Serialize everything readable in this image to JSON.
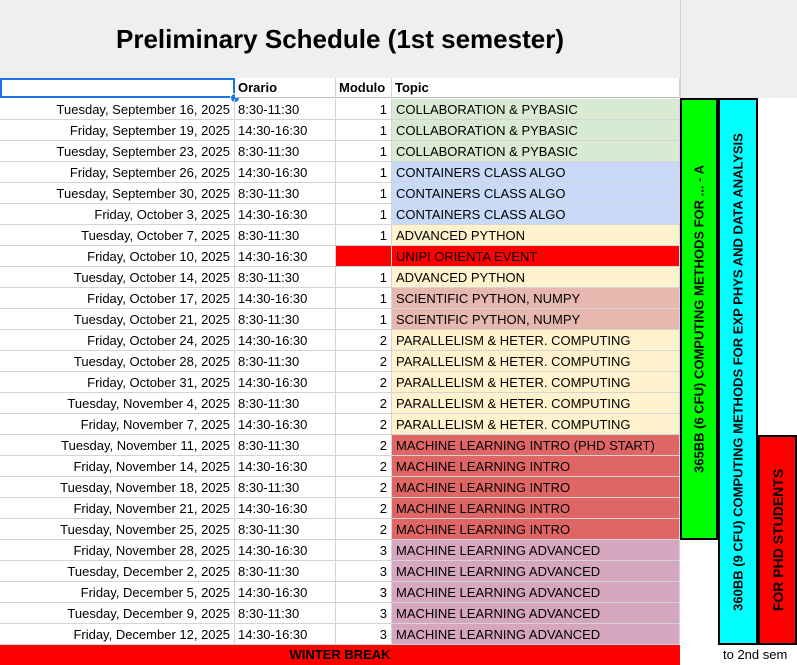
{
  "title": "Preliminary Schedule (1st semester)",
  "headers": {
    "date": "",
    "time": "Orario",
    "module": "Modulo",
    "topic": "Topic"
  },
  "colors": {
    "green_light": "#d9ead3",
    "blue_light": "#c9daf8",
    "yellow_light": "#fff2cc",
    "red_bright": "#ff0000",
    "salmon": "#e6b8af",
    "red_medium": "#e06666",
    "mauve": "#d5a6bd",
    "bar_green": "#00ff00",
    "bar_cyan": "#00ffff"
  },
  "rows": [
    {
      "date": "Tuesday, September 16, 2025",
      "time": "8:30-11:30",
      "module": "1",
      "topic": "COLLABORATION & PYBASIC",
      "color": "#d9ead3"
    },
    {
      "date": "Friday, September 19, 2025",
      "time": "14:30-16:30",
      "module": "1",
      "topic": "COLLABORATION & PYBASIC",
      "color": "#d9ead3"
    },
    {
      "date": "Tuesday, September 23, 2025",
      "time": "8:30-11:30",
      "module": "1",
      "topic": "COLLABORATION & PYBASIC",
      "color": "#d9ead3"
    },
    {
      "date": "Friday, September 26, 2025",
      "time": "14:30-16:30",
      "module": "1",
      "topic": "CONTAINERS CLASS ALGO",
      "color": "#c9daf8"
    },
    {
      "date": "Tuesday, September 30, 2025",
      "time": "8:30-11:30",
      "module": "1",
      "topic": "CONTAINERS CLASS ALGO",
      "color": "#c9daf8"
    },
    {
      "date": "Friday, October 3, 2025",
      "time": "14:30-16:30",
      "module": "1",
      "topic": "CONTAINERS CLASS ALGO",
      "color": "#c9daf8"
    },
    {
      "date": "Tuesday, October 7, 2025",
      "time": "8:30-11:30",
      "module": "1",
      "topic": "ADVANCED PYTHON",
      "color": "#fff2cc"
    },
    {
      "date": "Friday, October 10, 2025",
      "time": "14:30-16:30",
      "module": "",
      "topic": "UNIPI ORIENTA EVENT",
      "color": "#ff0000",
      "module_color": "#ff0000"
    },
    {
      "date": "Tuesday, October 14, 2025",
      "time": "8:30-11:30",
      "module": "1",
      "topic": "ADVANCED PYTHON",
      "color": "#fff2cc"
    },
    {
      "date": "Friday, October 17, 2025",
      "time": "14:30-16:30",
      "module": "1",
      "topic": "SCIENTIFIC PYTHON, NUMPY",
      "color": "#e6b8af"
    },
    {
      "date": "Tuesday, October 21, 2025",
      "time": "8:30-11:30",
      "module": "1",
      "topic": "SCIENTIFIC PYTHON, NUMPY",
      "color": "#e6b8af"
    },
    {
      "date": "Friday, October 24, 2025",
      "time": "14:30-16:30",
      "module": "2",
      "topic": "PARALLELISM & HETER. COMPUTING",
      "color": "#fff2cc"
    },
    {
      "date": "Tuesday, October 28, 2025",
      "time": "8:30-11:30",
      "module": "2",
      "topic": "PARALLELISM & HETER. COMPUTING",
      "color": "#fff2cc"
    },
    {
      "date": "Friday, October 31, 2025",
      "time": "14:30-16:30",
      "module": "2",
      "topic": "PARALLELISM & HETER. COMPUTING",
      "color": "#fff2cc"
    },
    {
      "date": "Tuesday, November 4, 2025",
      "time": "8:30-11:30",
      "module": "2",
      "topic": "PARALLELISM & HETER. COMPUTING",
      "color": "#fff2cc"
    },
    {
      "date": "Friday, November 7, 2025",
      "time": "14:30-16:30",
      "module": "2",
      "topic": "PARALLELISM & HETER. COMPUTING",
      "color": "#fff2cc"
    },
    {
      "date": "Tuesday, November 11, 2025",
      "time": "8:30-11:30",
      "module": "2",
      "topic": "MACHINE LEARNING INTRO (PHD START)",
      "color": "#e06666"
    },
    {
      "date": "Friday, November 14, 2025",
      "time": "14:30-16:30",
      "module": "2",
      "topic": "MACHINE LEARNING INTRO",
      "color": "#e06666"
    },
    {
      "date": "Tuesday, November 18, 2025",
      "time": "8:30-11:30",
      "module": "2",
      "topic": "MACHINE LEARNING INTRO",
      "color": "#e06666"
    },
    {
      "date": "Friday, November 21, 2025",
      "time": "14:30-16:30",
      "module": "2",
      "topic": "MACHINE LEARNING INTRO",
      "color": "#e06666"
    },
    {
      "date": "Tuesday, November 25, 2025",
      "time": "8:30-11:30",
      "module": "2",
      "topic": "MACHINE LEARNING INTRO",
      "color": "#e06666"
    },
    {
      "date": "Friday, November 28, 2025",
      "time": "14:30-16:30",
      "module": "3",
      "topic": "MACHINE LEARNING ADVANCED",
      "color": "#d5a6bd"
    },
    {
      "date": "Tuesday, December 2, 2025",
      "time": "8:30-11:30",
      "module": "3",
      "topic": "MACHINE LEARNING ADVANCED",
      "color": "#d5a6bd"
    },
    {
      "date": "Friday, December 5, 2025",
      "time": "14:30-16:30",
      "module": "3",
      "topic": "MACHINE LEARNING ADVANCED",
      "color": "#d5a6bd"
    },
    {
      "date": "Tuesday, December 9, 2025",
      "time": "8:30-11:30",
      "module": "3",
      "topic": "MACHINE LEARNING ADVANCED",
      "color": "#d5a6bd"
    },
    {
      "date": "Friday, December 12, 2025",
      "time": "14:30-16:30",
      "module": "3",
      "topic": "MACHINE LEARNING ADVANCED",
      "color": "#d5a6bd"
    }
  ],
  "side_labels": {
    "course_a": "365BB (6 CFU)     COMPUTING METHODS FOR ... - A",
    "course_b": "360BB (9 CFU)     COMPUTING METHODS FOR EXP PHYS AND DATA ANALYSIS",
    "phd": "FOR PHD STUDENTS"
  },
  "winter_break": "WINTER BREAK",
  "to_second_sem": "to 2nd sem"
}
